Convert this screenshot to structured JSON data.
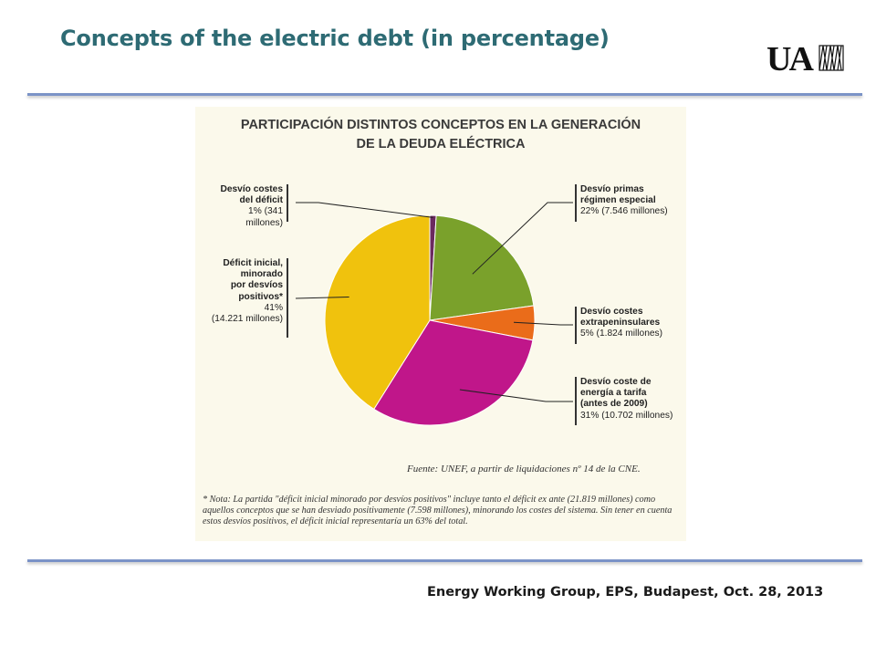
{
  "slide": {
    "title": "Concepts of the electric debt (in percentage)",
    "footer": "Energy Working Group, EPS, Budapest, Oct. 28, 2013",
    "logo_text": "UAM"
  },
  "chart_data": {
    "type": "pie",
    "title_line1": "PARTICIPACIÓN DISTINTOS CONCEPTOS EN LA GENERACIÓN",
    "title_line2": "DE LA DEUDA ELÉCTRICA",
    "slices": [
      {
        "name_lines": [
          "Desvío costes",
          "del déficit"
        ],
        "value_text": "1% (341 millones)",
        "percent": 1,
        "amount": 341,
        "color": "#6b2a5f"
      },
      {
        "name_lines": [
          "Desvío primas",
          "régimen especial"
        ],
        "value_text": "22% (7.546 millones)",
        "percent": 22,
        "amount": 7546,
        "color": "#7aa12b"
      },
      {
        "name_lines": [
          "Desvío costes",
          "extrapeninsulares"
        ],
        "value_text": "5% (1.824 millones)",
        "percent": 5,
        "amount": 1824,
        "color": "#ea6c1a"
      },
      {
        "name_lines": [
          "Desvío coste de",
          "energía a tarifa",
          "(antes de 2009)"
        ],
        "value_text": "31% (10.702 millones)",
        "percent": 31,
        "amount": 10702,
        "color": "#c0168a"
      },
      {
        "name_lines": [
          "Déficit inicial,",
          "minorado",
          "por desvíos",
          "positivos*"
        ],
        "value_text": "41%",
        "value_text2": "(14.221 millones)",
        "percent": 41,
        "amount": 14221,
        "color": "#f0c20d"
      }
    ],
    "source": "Fuente: UNEF, a partir de liquidaciones nº 14 de la CNE.",
    "note": "* Nota: La partida \"déficit inicial minorado por desvíos positivos\" incluye tanto el déficit ex ante (21.819 millones) como aquellos conceptos que se han desviado positivamente (7.598 millones), minorando los costes del sistema. Sin tener en cuenta estos desvíos positivos, el déficit inicial representaría un 63% del total."
  }
}
